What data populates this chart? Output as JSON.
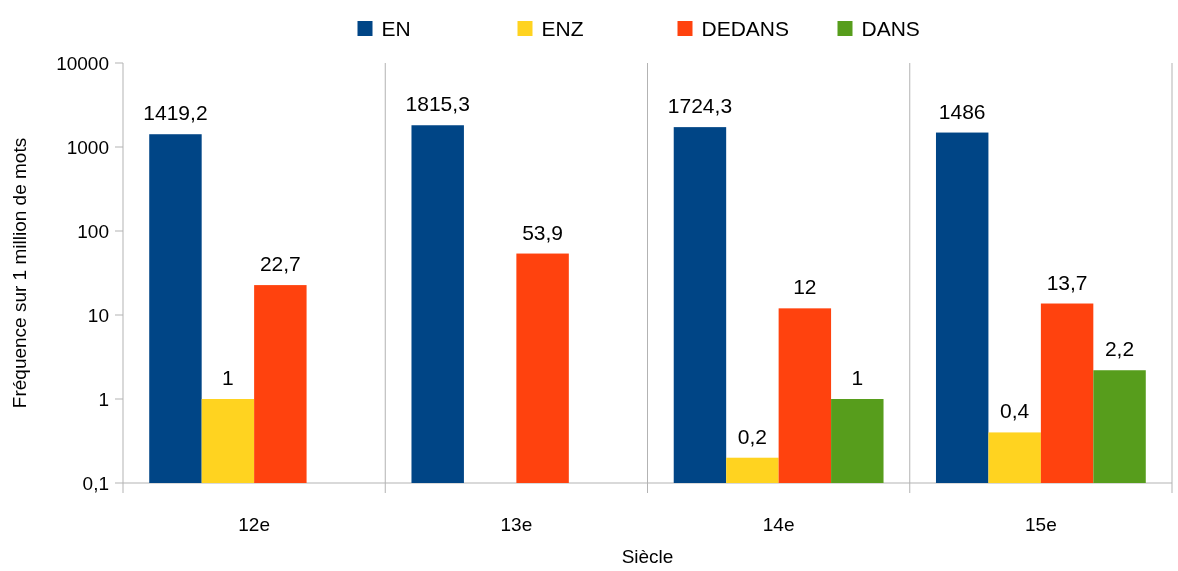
{
  "chart_data": {
    "type": "bar",
    "xlabel": "Siècle",
    "ylabel": "Fréquence sur 1 million de mots",
    "categories": [
      "12e",
      "13e",
      "14e",
      "15e"
    ],
    "series": [
      {
        "name": "EN",
        "color": "#004586",
        "values": [
          1419.2,
          1815.3,
          1724.3,
          1486
        ],
        "value_labels": [
          "1419,2",
          "1815,3",
          "1724,3",
          "1486"
        ]
      },
      {
        "name": "ENZ",
        "color": "#ffd320",
        "values": [
          1,
          null,
          0.2,
          0.4
        ],
        "value_labels": [
          "1",
          null,
          "0,2",
          "0,4"
        ]
      },
      {
        "name": "DEDANS",
        "color": "#ff420e",
        "values": [
          22.7,
          53.9,
          12,
          13.7
        ],
        "value_labels": [
          "22,7",
          "53,9",
          "12",
          "13,7"
        ]
      },
      {
        "name": "DANS",
        "color": "#579d1c",
        "values": [
          null,
          null,
          1,
          2.2
        ],
        "value_labels": [
          null,
          null,
          "1",
          "2,2"
        ]
      }
    ],
    "log": "y",
    "ylim": [
      0.1,
      10000
    ],
    "yticks": [
      {
        "value": 0.1,
        "label": "0,1"
      },
      1,
      10,
      100,
      1000,
      10000
    ],
    "grid": "x",
    "legend": "top"
  }
}
